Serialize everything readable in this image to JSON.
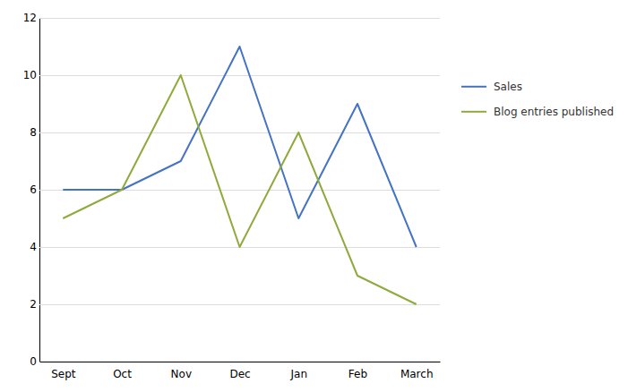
{
  "chart_data": {
    "type": "line",
    "categories": [
      "Sept",
      "Oct",
      "Nov",
      "Dec",
      "Jan",
      "Feb",
      "March"
    ],
    "series": [
      {
        "name": "Sales",
        "color": "#4472c4",
        "values": [
          6,
          6,
          7,
          11,
          5,
          9,
          4
        ]
      },
      {
        "name": "Blog entries published",
        "color": "#8faa3c",
        "values": [
          5,
          6,
          10,
          4,
          8,
          3,
          2
        ]
      }
    ],
    "ylim": [
      0,
      12
    ],
    "yticks": [
      0,
      2,
      4,
      6,
      8,
      10,
      12
    ],
    "grid": true,
    "legend": "right"
  }
}
